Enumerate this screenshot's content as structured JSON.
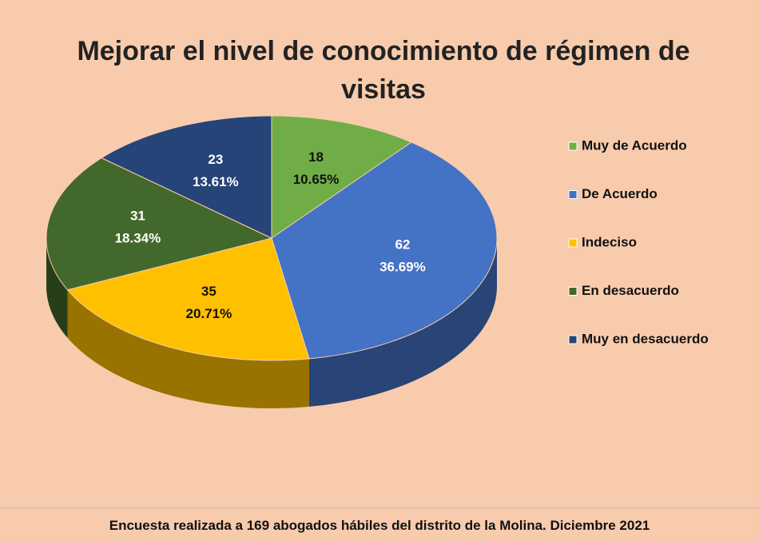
{
  "chart_data": {
    "type": "pie",
    "title": "Mejorar el nivel de conocimiento de régimen de visitas",
    "categories": [
      "Muy de Acuerdo",
      "De Acuerdo",
      "Indeciso",
      "En desacuerdo",
      "Muy en desacuerdo"
    ],
    "values": [
      18,
      62,
      35,
      31,
      23
    ],
    "percent_labels": [
      "10.65%",
      "36.69%",
      "20.71%",
      "18.34%",
      "13.61%"
    ],
    "colors": [
      "#70ad47",
      "#4472c4",
      "#ffc000",
      "#43682b",
      "#264478"
    ],
    "legend": "right",
    "caption": "Encuesta realizada a 169 abogados hábiles del distrito de la Molina. Diciembre 2021"
  }
}
